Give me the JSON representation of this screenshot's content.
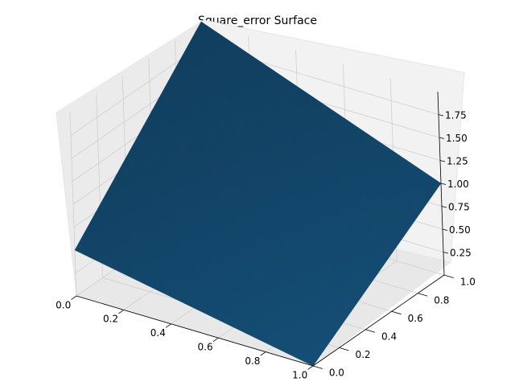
{
  "chart_data": {
    "type": "surface3d",
    "title": "Square_error Surface",
    "xlabel": "",
    "ylabel": "",
    "zlabel": "",
    "xlim": [
      0,
      1
    ],
    "ylim": [
      0,
      1
    ],
    "zlim": [
      0,
      2
    ],
    "x_ticks": [
      "0.0",
      "0.2",
      "0.4",
      "0.6",
      "0.8",
      "1.0"
    ],
    "y_ticks": [
      "0.0",
      "0.2",
      "0.4",
      "0.6",
      "0.8",
      "1.0"
    ],
    "z_ticks": [
      "0.25",
      "0.50",
      "0.75",
      "1.00",
      "1.25",
      "1.50",
      "1.75"
    ],
    "grid": true,
    "surface_color": "#1f77b4",
    "surface_corner_values": {
      "x0_y0": 0.5,
      "x1_y0": 0.0,
      "x0_y1": 2.0,
      "x1_y1": 1.0
    }
  }
}
